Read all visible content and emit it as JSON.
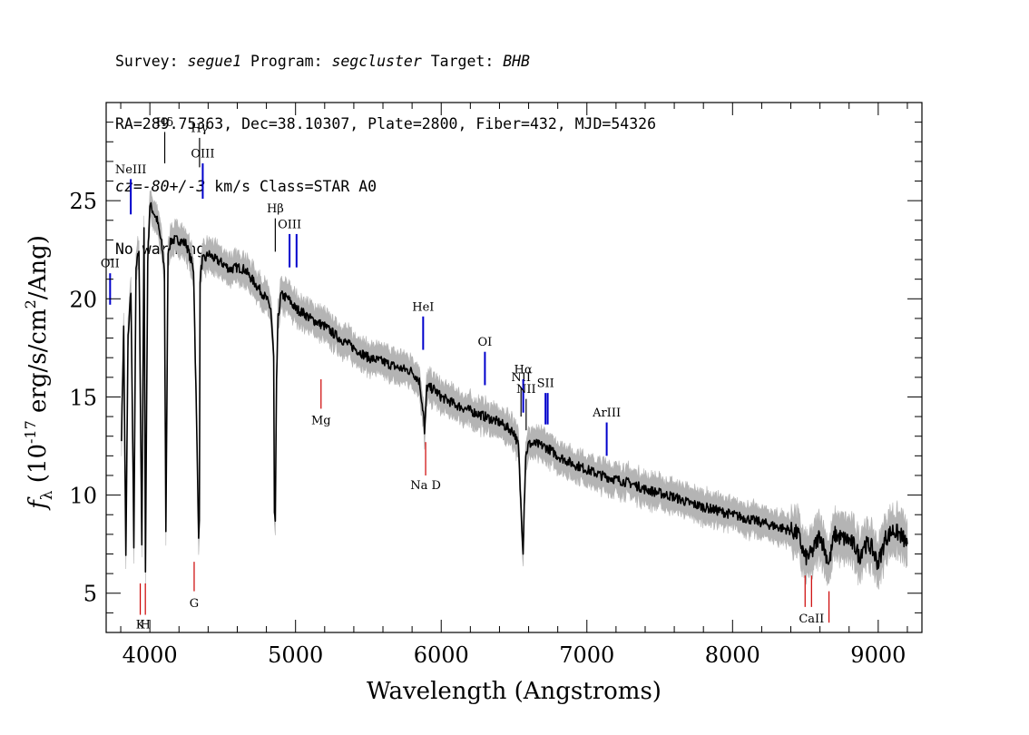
{
  "header": {
    "line1": {
      "survey_label": "Survey: ",
      "survey": "segue1",
      "program_label": " Program: ",
      "program": "segcluster",
      "target_label": " Target: ",
      "target": "BHB"
    },
    "line2": "RA=289.75363, Dec=38.10307, Plate=2800, Fiber=432, MJD=54326",
    "line3": {
      "cz_label": "cz=",
      "cz_value": "-80+/-3",
      "cz_rest": " km/s Class=STAR A0"
    },
    "line4": "No warnings."
  },
  "chart_data": {
    "type": "line",
    "title": "",
    "xlabel": "Wavelength (Angstroms)",
    "ylabel": "f_λ (10^-17 erg/s/cm^2/Ang)",
    "xlim": [
      3700,
      9300
    ],
    "ylim": [
      3,
      30
    ],
    "xticks": [
      4000,
      5000,
      6000,
      7000,
      8000,
      9000
    ],
    "yticks": [
      5,
      10,
      15,
      20,
      25
    ],
    "grid": false,
    "colors": {
      "spectrum": "#000000",
      "error_band": "#b4b4b4",
      "emission_line": "#0000cc",
      "absorption_line": "#cc0000"
    },
    "series": [
      {
        "x": [
          3805,
          3820,
          3835,
          3850,
          3870,
          3890,
          3905,
          3925,
          3945,
          3960,
          3970,
          3985,
          4000,
          4020,
          4050,
          4080,
          4100,
          4110,
          4125,
          4150,
          4200,
          4250,
          4300,
          4320,
          4335,
          4340,
          4345,
          4360,
          4380,
          4400,
          4450,
          4500,
          4550,
          4600,
          4650,
          4700,
          4750,
          4800,
          4830,
          4850,
          4855,
          4861,
          4870,
          4880,
          4900,
          4950,
          5000,
          5050,
          5100,
          5150,
          5200,
          5300,
          5400,
          5500,
          5600,
          5700,
          5800,
          5850,
          5880,
          5885,
          5895,
          5900,
          5950,
          6000,
          6100,
          6200,
          6300,
          6400,
          6500,
          6530,
          6550,
          6562,
          6570,
          6580,
          6600,
          6650,
          6700,
          6750,
          6800,
          6900,
          7000,
          7100,
          7200,
          7300,
          7400,
          7500,
          7600,
          7700,
          7800,
          7900,
          8000,
          8100,
          8200,
          8300,
          8400,
          8450,
          8498,
          8542,
          8600,
          8662,
          8700,
          8750,
          8800,
          8850,
          8870,
          8900,
          8950,
          9000,
          9050,
          9100,
          9150,
          9200
        ],
        "y": [
          13.0,
          18.5,
          6.8,
          18.0,
          20.5,
          7.5,
          21.5,
          22.5,
          7.5,
          23.5,
          6.2,
          22.0,
          24.8,
          24.5,
          24.0,
          22.8,
          21.5,
          8.0,
          22.5,
          23.0,
          23.0,
          22.8,
          21.5,
          14.0,
          8.0,
          8.5,
          21.0,
          22.0,
          22.0,
          22.3,
          22.0,
          21.8,
          21.5,
          21.6,
          21.5,
          21.0,
          20.5,
          20.0,
          19.5,
          17.0,
          9.0,
          8.5,
          16.0,
          19.0,
          20.2,
          20.0,
          19.5,
          19.3,
          19.0,
          18.8,
          18.6,
          18.0,
          17.5,
          17.0,
          16.8,
          16.5,
          16.3,
          15.8,
          14.0,
          13.0,
          14.5,
          15.5,
          15.4,
          15.0,
          14.6,
          14.3,
          14.0,
          13.7,
          13.2,
          12.5,
          9.0,
          7.2,
          9.5,
          12.0,
          12.6,
          12.6,
          12.5,
          12.3,
          12.0,
          11.6,
          11.3,
          11.0,
          10.8,
          10.6,
          10.3,
          10.1,
          9.9,
          9.6,
          9.4,
          9.2,
          9.0,
          8.8,
          8.6,
          8.4,
          8.2,
          8.0,
          6.8,
          7.0,
          8.0,
          6.5,
          8.0,
          7.8,
          7.7,
          7.3,
          6.8,
          7.5,
          7.4,
          6.5,
          7.8,
          8.2,
          8.0,
          7.5
        ]
      }
    ],
    "line_markers": [
      {
        "label": "OII",
        "x": 3727,
        "type": "emission",
        "y_top": 21.3,
        "y_bot": 19.7,
        "label_y": 21.6
      },
      {
        "label": "NeIII",
        "x": 3869,
        "type": "emission",
        "y_top": 26.1,
        "y_bot": 24.3,
        "label_y": 26.4
      },
      {
        "label": "Hδ",
        "x": 4102,
        "type": "balmer",
        "y_top": 28.5,
        "y_bot": 26.9,
        "label_y": 28.8
      },
      {
        "label": "Hγ",
        "x": 4341,
        "type": "balmer",
        "y_top": 28.2,
        "y_bot": 26.7,
        "label_y": 28.5
      },
      {
        "label": "OIII",
        "x": 4363,
        "type": "emission",
        "y_top": 26.9,
        "y_bot": 25.1,
        "label_y": 27.2
      },
      {
        "label": "Hβ",
        "x": 4861,
        "type": "balmer",
        "y_top": 24.1,
        "y_bot": 22.4,
        "label_y": 24.4
      },
      {
        "label": "OIII",
        "x": 4959,
        "type": "emission",
        "y_top": 23.3,
        "y_bot": 21.6,
        "label_y": 23.6
      },
      {
        "label": "",
        "x": 5007,
        "type": "emission",
        "y_top": 23.3,
        "y_bot": 21.6,
        "label_y": 23.6
      },
      {
        "label": "HeI",
        "x": 5876,
        "type": "emission",
        "y_top": 19.1,
        "y_bot": 17.4,
        "label_y": 19.4
      },
      {
        "label": "OI",
        "x": 6300,
        "type": "emission",
        "y_top": 17.3,
        "y_bot": 15.6,
        "label_y": 17.6
      },
      {
        "label": "NII",
        "x": 6548,
        "type": "balmer",
        "y_top": 15.5,
        "y_bot": 14.0,
        "label_y": 15.8
      },
      {
        "label": "Hα",
        "x": 6563,
        "type": "emission",
        "y_top": 15.9,
        "y_bot": 14.2,
        "label_y": 16.2
      },
      {
        "label": "NII",
        "x": 6583,
        "type": "balmer",
        "y_top": 14.9,
        "y_bot": 13.3,
        "label_y": 15.2
      },
      {
        "label": "SII",
        "x": 6716,
        "type": "emission",
        "y_top": 15.2,
        "y_bot": 13.6,
        "label_y": 15.5
      },
      {
        "label": "",
        "x": 6731,
        "type": "emission",
        "y_top": 15.2,
        "y_bot": 13.6,
        "label_y": 15.5
      },
      {
        "label": "ArIII",
        "x": 7136,
        "type": "emission",
        "y_top": 13.7,
        "y_bot": 12.0,
        "label_y": 14.0
      },
      {
        "label": "Mg",
        "x": 5175,
        "type": "absorption",
        "y_top": 15.9,
        "y_bot": 14.4,
        "label_y": 13.6
      },
      {
        "label": "G",
        "x": 4304,
        "type": "absorption",
        "y_top": 6.6,
        "y_bot": 5.1,
        "label_y": 4.3
      },
      {
        "label": "K",
        "x": 3934,
        "type": "absorption",
        "y_top": 5.5,
        "y_bot": 3.9,
        "label_y": 3.2
      },
      {
        "label": "H",
        "x": 3969,
        "type": "absorption",
        "y_top": 5.5,
        "y_bot": 3.9,
        "label_y": 3.2
      },
      {
        "label": "Na D",
        "x": 5893,
        "type": "absorption",
        "y_top": 12.7,
        "y_bot": 11.0,
        "label_y": 10.3
      },
      {
        "label": "",
        "x": 8498,
        "type": "absorption",
        "y_top": 5.9,
        "y_bot": 4.3,
        "label_y": 3.5
      },
      {
        "label": "CaII",
        "x": 8542,
        "type": "absorption",
        "y_top": 5.9,
        "y_bot": 4.3,
        "label_y": 3.5
      },
      {
        "label": "",
        "x": 8662,
        "type": "absorption",
        "y_top": 5.1,
        "y_bot": 3.5,
        "label_y": 3.5
      }
    ]
  }
}
